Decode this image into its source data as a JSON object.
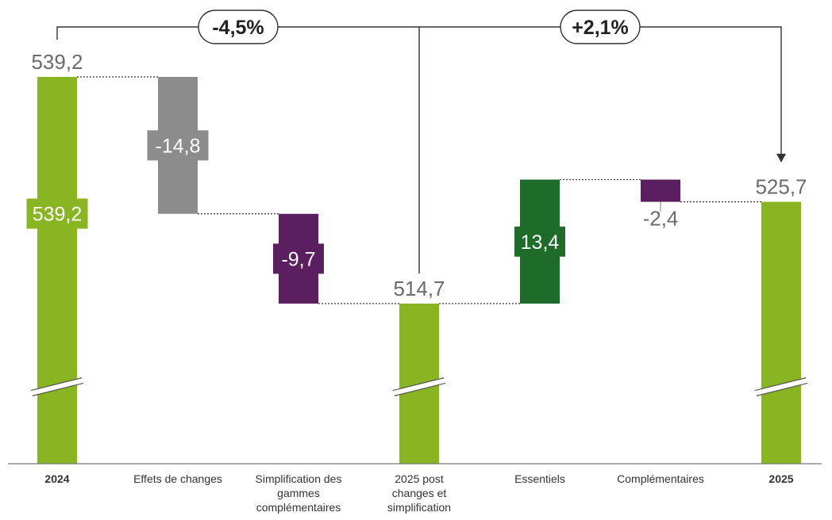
{
  "chart_data": {
    "type": "waterfall",
    "title": "",
    "xlabel": "",
    "ylabel": "",
    "ylim": [
      460,
      545
    ],
    "axis_break": true,
    "grid": false,
    "colors": {
      "total": "#8ab523",
      "fx": "#8c8c8c",
      "negative": "#5b1e5e",
      "positive": "#1e6b2a",
      "connector": "#333333"
    },
    "steps": [
      {
        "category": "2024",
        "category_lines": [
          "2024"
        ],
        "bold": true,
        "kind": "total",
        "value": 539.2,
        "label_above": "539,2",
        "label_inside": "539,2"
      },
      {
        "category": "Effets de changes",
        "category_lines": [
          "Effets de changes"
        ],
        "bold": false,
        "kind": "fx",
        "value": -14.8,
        "label_inside": "-14,8"
      },
      {
        "category": "Simplification des gammes complémentaires",
        "category_lines": [
          "Simplification des",
          "gammes",
          "complémentaires"
        ],
        "bold": false,
        "kind": "negative",
        "value": -9.7,
        "label_inside": "-9,7"
      },
      {
        "category": "2025 post changes et simplification",
        "category_lines": [
          "2025 post",
          "changes et",
          "simplification"
        ],
        "bold": false,
        "kind": "total",
        "value": 514.7,
        "label_above": "514,7"
      },
      {
        "category": "Essentiels",
        "category_lines": [
          "Essentiels"
        ],
        "bold": false,
        "kind": "positive",
        "value": 13.4,
        "label_inside": "13,4"
      },
      {
        "category": "Complémentaires",
        "category_lines": [
          "Complémentaires"
        ],
        "bold": false,
        "kind": "negative",
        "value": -2.4,
        "label_below": "-2,4"
      },
      {
        "category": "2025",
        "category_lines": [
          "2025"
        ],
        "bold": true,
        "kind": "total",
        "value": 525.7,
        "label_above": "525,7"
      }
    ],
    "annotations": [
      {
        "label": "-4,5%",
        "from": "2024",
        "to": "2025 post changes et simplification"
      },
      {
        "label": "+2,1%",
        "from": "2025 post changes et simplification",
        "to": "2025"
      }
    ]
  }
}
